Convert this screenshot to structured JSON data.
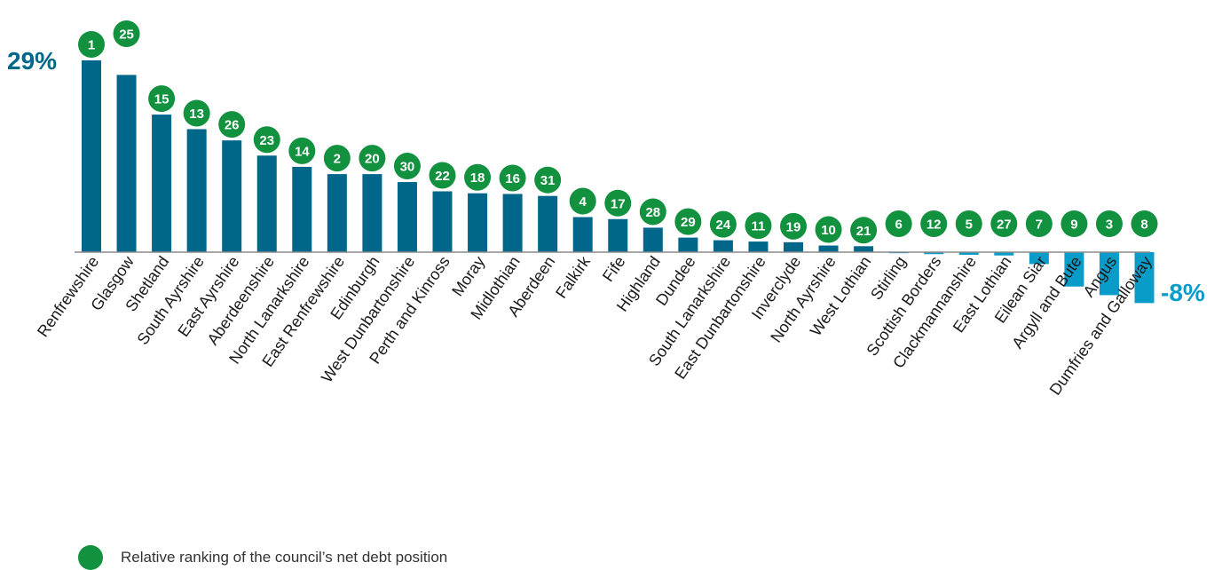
{
  "chart_data": {
    "type": "bar",
    "categories": [
      "Renfrewshire",
      "Glasgow",
      "Shetland",
      "South Ayrshire",
      "East Ayrshire",
      "Aberdeenshire",
      "North Lanarkshire",
      "East Renfrewshire",
      "Edinburgh",
      "West Dunbartonshire",
      "Perth and Kinross",
      "Moray",
      "Midlothian",
      "Aberdeen",
      "Falkirk",
      "Fife",
      "Highland",
      "Dundee",
      "South Lanarkshire",
      "East Dunbartonshire",
      "Inverclyde",
      "North Ayrshire",
      "West Lothian",
      "Stirling",
      "Scottish Borders",
      "Clackmannanshire",
      "East Lothian",
      "Eilean Siar",
      "Argyll and Bute",
      "Angus",
      "Dumfries and Galloway"
    ],
    "values": [
      29,
      26.8,
      20.8,
      18.6,
      16.9,
      14.6,
      12.9,
      11.8,
      11.8,
      10.6,
      9.2,
      8.9,
      8.8,
      8.5,
      5.3,
      5.0,
      3.7,
      2.2,
      1.8,
      1.6,
      1.5,
      1.0,
      0.9,
      -0.1,
      -0.3,
      -0.4,
      -0.5,
      -1.8,
      -5.2,
      -6.5,
      -7.7
    ],
    "ranks": [
      "1",
      "25",
      "15",
      "13",
      "26",
      "23",
      "14",
      "2",
      "20",
      "30",
      "22",
      "18",
      "16",
      "31",
      "4",
      "17",
      "28",
      "29",
      "24",
      "11",
      "19",
      "10",
      "21",
      "6",
      "12",
      "5",
      "27",
      "7",
      "9",
      "3",
      "8"
    ],
    "max_label": "29%",
    "min_label": "-8%",
    "colors": {
      "positive_bar": "#00668a",
      "negative_bar": "#0a9cc9",
      "rank_circle": "#12913f"
    }
  },
  "legend": {
    "text": "Relative ranking of the council’s net debt position"
  }
}
